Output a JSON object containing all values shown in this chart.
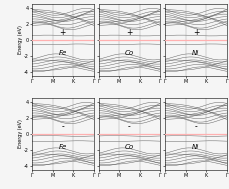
{
  "panels": [
    {
      "label": "Fe",
      "spin": "+",
      "row": 0,
      "col": 0
    },
    {
      "label": "Co",
      "spin": "+",
      "row": 0,
      "col": 1
    },
    {
      "label": "Ni",
      "spin": "+",
      "row": 0,
      "col": 2
    },
    {
      "label": "Fe",
      "spin": "-",
      "row": 1,
      "col": 0
    },
    {
      "label": "Co",
      "spin": "-",
      "row": 1,
      "col": 1
    },
    {
      "label": "Ni",
      "spin": "-",
      "row": 1,
      "col": 2
    }
  ],
  "ylim": [
    -4.5,
    4.5
  ],
  "yticks": [
    -4,
    -2,
    0,
    2,
    4
  ],
  "xtick_labels": [
    "Γ",
    "M",
    "K",
    "Γ"
  ],
  "ylabel": "Energy (eV)",
  "fermi_color": "#ffb0b0",
  "line_color": "#555555",
  "bg_color": "#f5f5f5"
}
